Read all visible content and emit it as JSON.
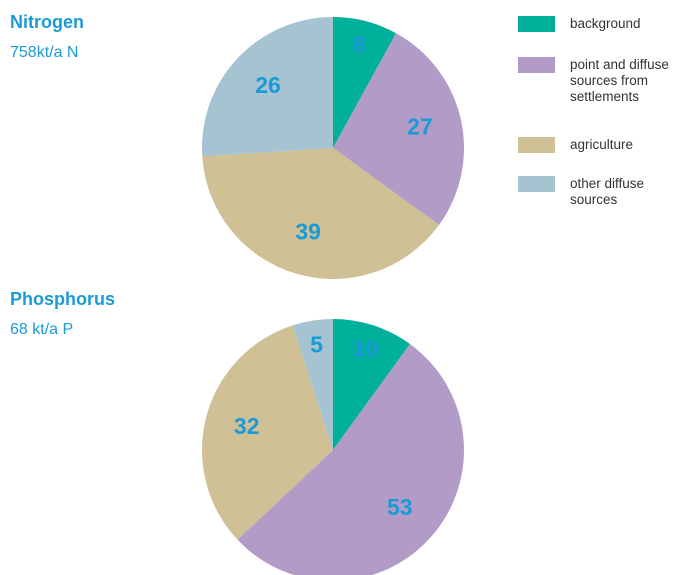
{
  "chart_data": [
    {
      "type": "pie",
      "title": "Nitrogen",
      "subtitle": "758kt/a N",
      "categories": [
        "background",
        "point and diffuse sources from settlements",
        "agriculture",
        "other diffuse sources"
      ],
      "colors": [
        "#00b09b",
        "#b39bc8",
        "#cfc095",
        "#a5c3d1"
      ],
      "values": [
        8,
        27,
        39,
        26
      ]
    },
    {
      "type": "pie",
      "title": "Phosphorus",
      "subtitle": "68 kt/a P",
      "values": [
        10,
        53,
        32,
        5
      ]
    }
  ]
}
